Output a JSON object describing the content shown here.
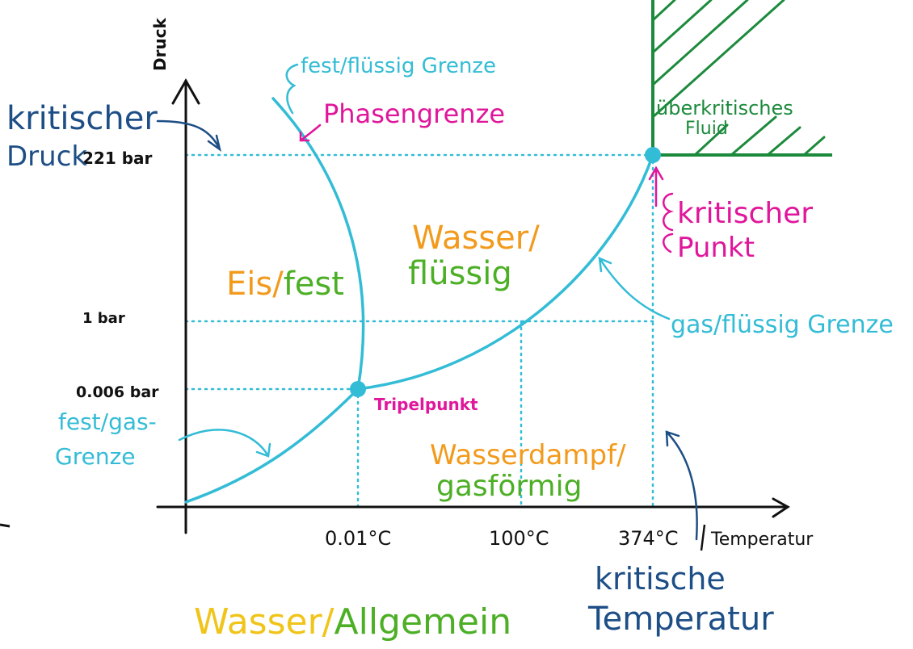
{
  "colors": {
    "axis": "#111111",
    "curve": "#33bcd6",
    "guide": "#33bcd6",
    "navy": "#1d4e86",
    "magenta": "#e0169b",
    "orange": "#f29a1c",
    "green": "#4caf25",
    "darkgreen": "#1c8a3c",
    "yellow": "#f0c419"
  },
  "axes": {
    "y_label": "Druck",
    "x_label": "Temperatur"
  },
  "ticks": {
    "y": [
      "221 bar",
      "1 bar",
      "0.006 bar"
    ],
    "x": [
      "0.01°C",
      "100°C",
      "374°C"
    ]
  },
  "labels": {
    "kritischer_druck_line1": "kritischer",
    "kritischer_druck_line2": "Druck",
    "fest_fluessig_grenze": "fest/flüssig Grenze",
    "phasengrenze": "Phasengrenze",
    "ueberkritisches_line1": "überkritisches",
    "ueberkritisches_line2": "Fluid",
    "kritischer_punkt_line1": "kritischer",
    "kritischer_punkt_line2": "Punkt",
    "wasser_line1": "Wasser/",
    "wasser_line2": "flüssig",
    "eis_part1": "Eis/",
    "eis_part2": "fest",
    "gas_fluessig_grenze": "gas/flüssig Grenze",
    "tripelpunkt": "Tripelpunkt",
    "fest_gas_line1": "fest/gas-",
    "fest_gas_line2": "Grenze",
    "dampf_line1": "Wasserdampf/",
    "dampf_line2": "gasförmig",
    "kritische_temp_line1": "kritische",
    "kritische_temp_line2": "Temperatur",
    "footer_part1": "Wasser/",
    "footer_part2": "Allgemein"
  }
}
